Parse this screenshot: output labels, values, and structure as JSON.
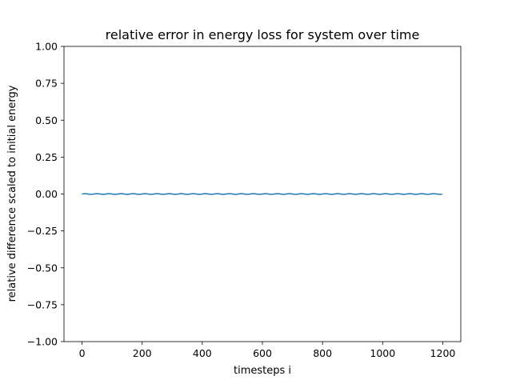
{
  "chart_data": {
    "type": "line",
    "title": "relative error in energy loss for system over time",
    "xlabel": "timesteps i",
    "ylabel": "relative difference scaled to initial energy",
    "xlim": [
      -60,
      1260
    ],
    "ylim": [
      -1.0,
      1.0
    ],
    "xticks": [
      0,
      200,
      400,
      600,
      800,
      1000,
      1200
    ],
    "xtick_labels": [
      "0",
      "200",
      "400",
      "600",
      "800",
      "1000",
      "1200"
    ],
    "yticks": [
      -1.0,
      -0.75,
      -0.5,
      -0.25,
      0.0,
      0.25,
      0.5,
      0.75,
      1.0
    ],
    "ytick_labels": [
      "−1.00",
      "−0.75",
      "−0.50",
      "−0.25",
      "0.00",
      "0.25",
      "0.50",
      "0.75",
      "1.00"
    ],
    "grid": false,
    "legend": "none",
    "series": [
      {
        "color": "#1f77b4",
        "x_start": 0,
        "x_end": 1199,
        "mean": 0.0,
        "oscillation_amplitude": 0.002,
        "oscillation_period": 40
      }
    ]
  }
}
